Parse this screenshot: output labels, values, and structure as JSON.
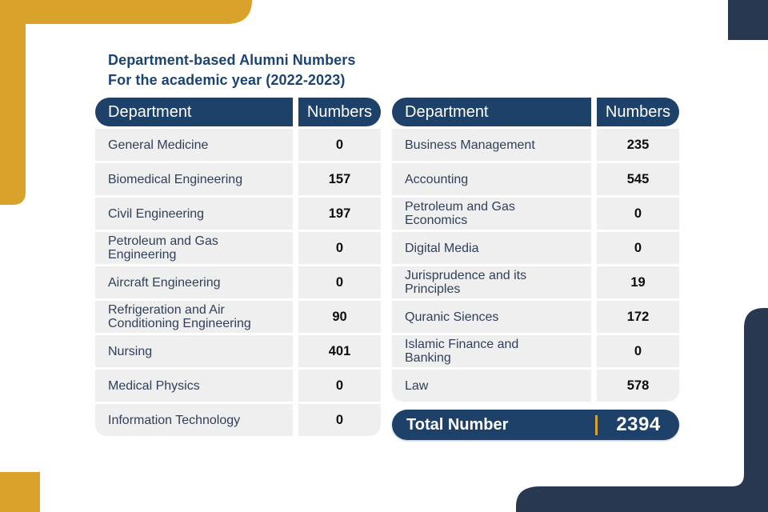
{
  "title": {
    "line1": "Department-based Alumni Numbers",
    "line2": "For the academic year (2022-2023)"
  },
  "header": {
    "department": "Department",
    "numbers": "Numbers"
  },
  "total": {
    "label": "Total Number",
    "value": "2394"
  },
  "colors": {
    "header_navy": "#1d4168",
    "corner_navy": "#273850",
    "gold": "#d9a32b",
    "row_gray": "#efefef",
    "title_navy": "#1b4472",
    "dept_text": "#31405a"
  },
  "chart_data": {
    "type": "table",
    "title": "Department-based Alumni Numbers",
    "subtitle": "For the academic year (2022-2023)",
    "columns": [
      "Department",
      "Numbers"
    ],
    "left_table_rows": [
      [
        "General Medicine",
        "0"
      ],
      [
        "Biomedical Engineering",
        "157"
      ],
      [
        "Civil Engineering",
        "197"
      ],
      [
        "Petroleum and Gas Engineering",
        "0"
      ],
      [
        "Aircraft Engineering",
        "0"
      ],
      [
        "Refrigeration and Air Conditioning Engineering",
        "90"
      ],
      [
        "Nursing",
        "401"
      ],
      [
        "Medical Physics",
        "0"
      ],
      [
        "Information Technology",
        "0"
      ]
    ],
    "right_table_rows": [
      [
        "Business Management",
        "235"
      ],
      [
        "Accounting",
        "545"
      ],
      [
        "Petroleum and Gas Economics",
        "0"
      ],
      [
        "Digital Media",
        "0"
      ],
      [
        "Jurisprudence and its Principles",
        "19"
      ],
      [
        "Quranic Siences",
        "172"
      ],
      [
        "Islamic Finance and Banking",
        "0"
      ],
      [
        "Law",
        "578"
      ]
    ],
    "total": {
      "label": "Total Number",
      "value": "2394"
    }
  }
}
